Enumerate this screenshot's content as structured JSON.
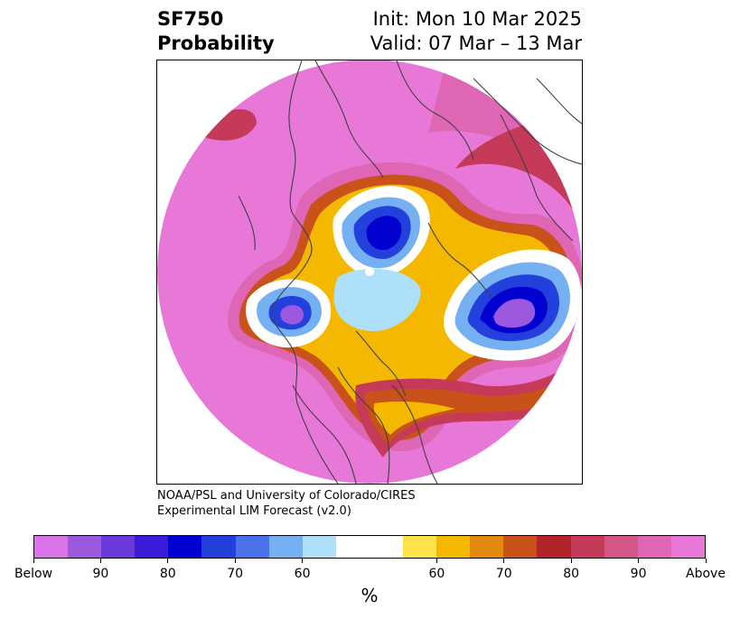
{
  "header": {
    "title_line1": "SF750",
    "title_line2": "Probability",
    "init": "Init: Mon 10 Mar 2025",
    "valid": "Valid: 07 Mar – 13 Mar"
  },
  "credit": {
    "line1": "NOAA/PSL and University of Colorado/CIRES",
    "line2": "Experimental LIM Forecast (v2.0)"
  },
  "colorbar": {
    "colors": [
      "#d873e8",
      "#9d58e0",
      "#6b3adb",
      "#3a1bd8",
      "#0000d0",
      "#2340dd",
      "#4b73e9",
      "#74b0f2",
      "#aee0fb",
      "#ffffff",
      "#ffffff",
      "#ffe14a",
      "#f5b800",
      "#e28a10",
      "#c9511a",
      "#b2242a",
      "#c53a58",
      "#d45686",
      "#de66b4",
      "#e878d8"
    ],
    "tick_labels": [
      "Below",
      "90",
      "80",
      "70",
      "60",
      "60",
      "70",
      "80",
      "90",
      "Above"
    ],
    "unit_label": "%"
  },
  "map_colors": {
    "above_far": "#e878d8",
    "above_90": "#de66b4",
    "above_80": "#c53a58",
    "above_70": "#c9511a",
    "above_60": "#f5b800",
    "neutral": "#ffffff",
    "below_60": "#aee0fb",
    "below_70": "#74b0f2",
    "below_80": "#2340dd",
    "below_90": "#0000d0",
    "below_far": "#9d58e0",
    "land_lines": "#404040"
  }
}
